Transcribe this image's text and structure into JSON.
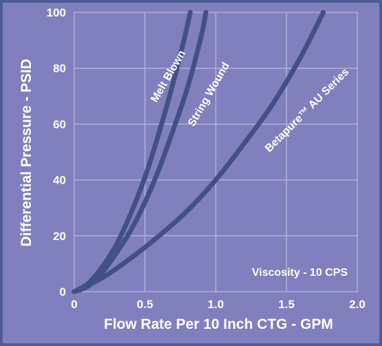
{
  "chart_data": {
    "type": "line",
    "title": "",
    "xlabel": "Flow Rate Per 10 Inch CTG - GPM",
    "ylabel": "Differential Pressure - PSID",
    "xlim": [
      0,
      2.0
    ],
    "ylim": [
      0,
      100
    ],
    "x_ticks": [
      "0",
      "0.5",
      "1.0",
      "1.5",
      "2.0"
    ],
    "y_ticks": [
      "0",
      "20",
      "40",
      "60",
      "80",
      "100"
    ],
    "grid": true,
    "annotation": "Viscosity - 10 CPS",
    "colors": {
      "background": "#8080be",
      "border": "#4e5b94",
      "grid": "#c4c8e6",
      "line": "#434f86",
      "text": "#ffffff"
    },
    "series": [
      {
        "name": "Melt Blown",
        "x": [
          0,
          0.1,
          0.2,
          0.3,
          0.4,
          0.5,
          0.6,
          0.7,
          0.78,
          0.82
        ],
        "y": [
          0,
          3,
          9,
          17,
          28,
          41,
          57,
          75,
          91,
          100
        ]
      },
      {
        "name": "String Wound",
        "x": [
          0,
          0.1,
          0.2,
          0.3,
          0.4,
          0.5,
          0.6,
          0.7,
          0.8,
          0.9,
          0.93
        ],
        "y": [
          0,
          2,
          7,
          14,
          22,
          32,
          44,
          58,
          73,
          92,
          100
        ]
      },
      {
        "name": "Betapure™ AU Series",
        "x": [
          0,
          0.2,
          0.4,
          0.6,
          0.8,
          1.0,
          1.2,
          1.4,
          1.6,
          1.76
        ],
        "y": [
          0,
          5,
          12,
          20,
          29,
          40,
          53,
          67,
          84,
          100
        ]
      }
    ]
  }
}
